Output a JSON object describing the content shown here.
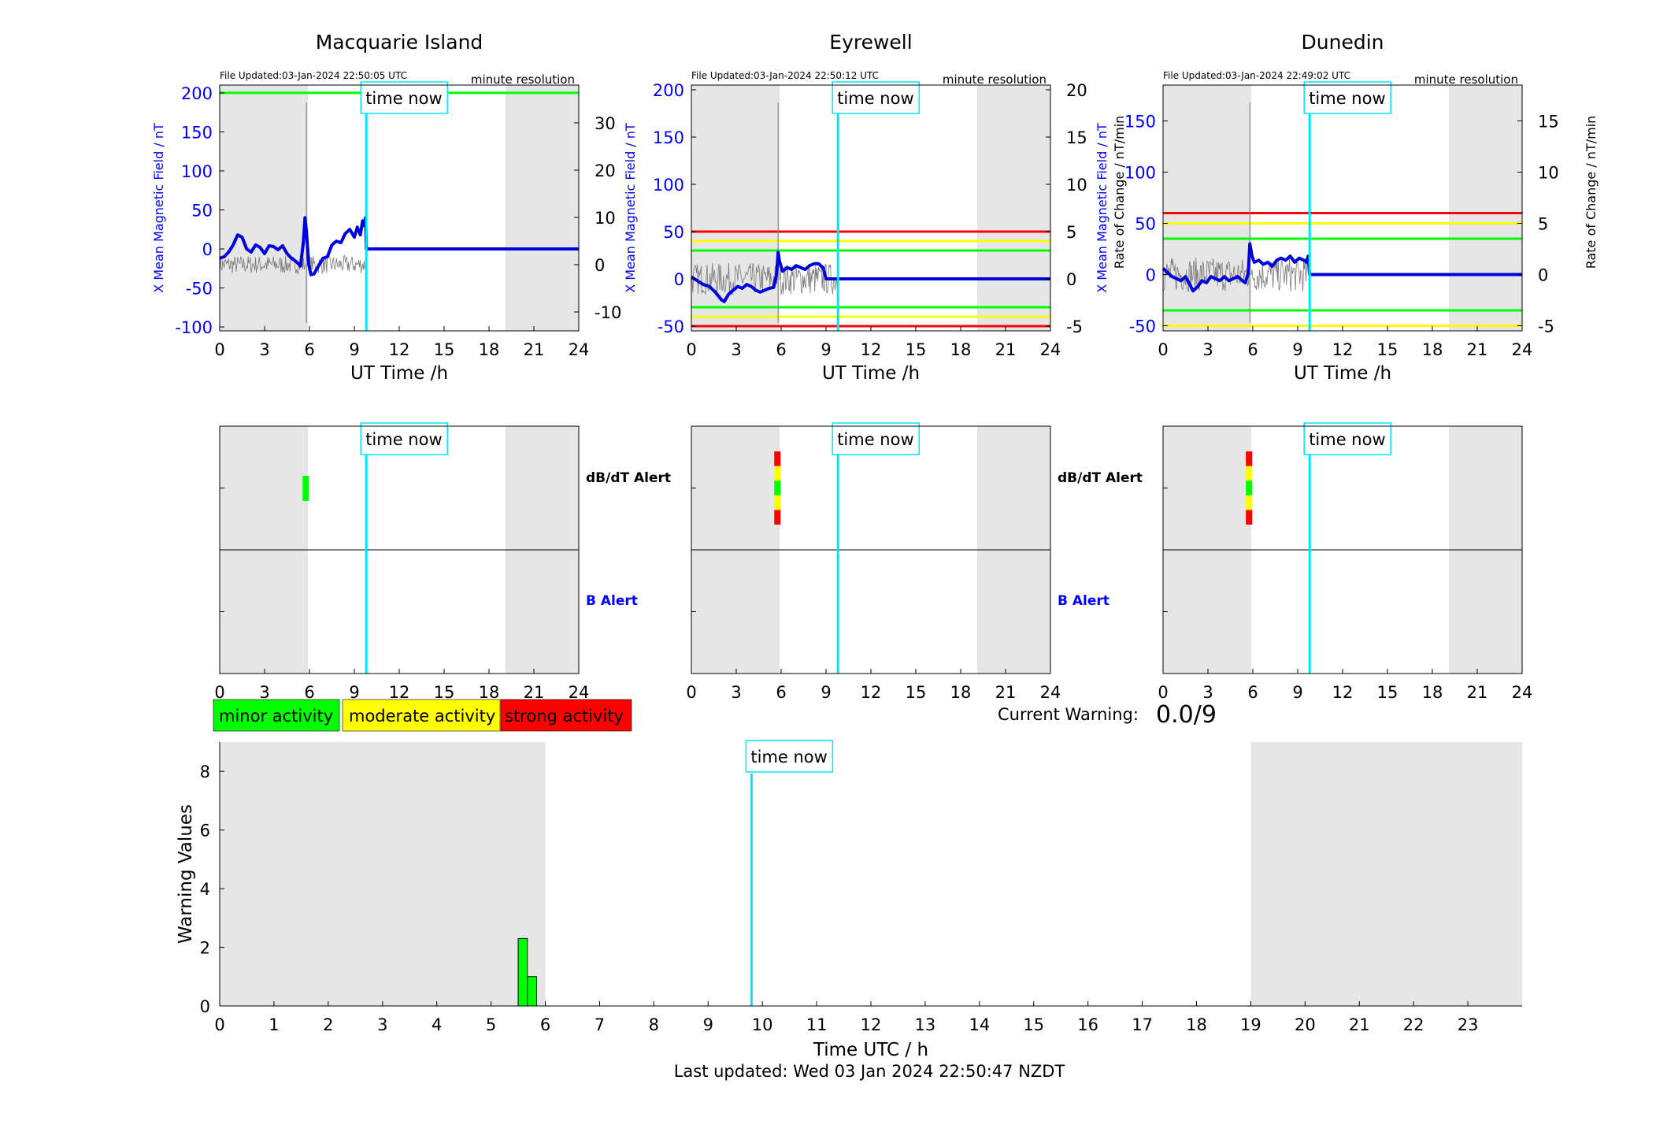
{
  "colors": {
    "background": "#ffffff",
    "night_shading": "#e6e6e6",
    "time_now": "#00e5ff",
    "field_trace": "#0000dd",
    "rate_trace": "#555555",
    "minor": "#00ff00",
    "moderate": "#ffff00",
    "strong": "#ff0000",
    "axis": "#000000",
    "blue_text": "#0000ff"
  },
  "stations": [
    {
      "title": "Macquarie Island",
      "file_updated": "File Updated:03-Jan-2024 22:50:05 UTC",
      "resolution": "minute resolution",
      "time_now_label": "time now",
      "left_axis_label": "X Mean Magnetic Field / nT",
      "right_axis_label": "",
      "xlabel": "UT Time /h",
      "dbdt_alert_label": "dB/dT Alert",
      "b_alert_label": "B Alert",
      "time_now_h": 9.8
    },
    {
      "title": "Eyrewell",
      "file_updated": "File Updated:03-Jan-2024 22:50:12 UTC",
      "resolution": "minute resolution",
      "time_now_label": "time now",
      "left_axis_label": "X Mean Magnetic Field / nT",
      "right_axis_label": "Rate of Change / nT/min",
      "xlabel": "UT Time /h",
      "dbdt_alert_label": "dB/dT Alert",
      "b_alert_label": "B Alert",
      "time_now_h": 9.8
    },
    {
      "title": "Dunedin",
      "file_updated": "File Updated:03-Jan-2024 22:49:02 UTC",
      "resolution": "minute resolution",
      "time_now_label": "time now",
      "left_axis_label": "X Mean Magnetic Field / nT",
      "right_axis_label": "Rate of Change / nT/min",
      "xlabel": "UT Time /h",
      "dbdt_alert_label": "",
      "b_alert_label": "",
      "time_now_h": 9.8
    }
  ],
  "legend": {
    "minor": "minor activity",
    "moderate": "moderate activity",
    "strong": "strong activity"
  },
  "current_warning": {
    "label": "Current Warning:",
    "value": "0.0/9"
  },
  "bottom": {
    "ylabel": "Warning Values",
    "xlabel": "Time UTC / h",
    "time_now_label": "time now",
    "last_updated": "Last updated: Wed 03 Jan 2024 22:50:47 NZDT"
  },
  "chart_data": [
    {
      "station": "Macquarie Island",
      "type": "line",
      "xlabel": "UT Time /h",
      "xlim": [
        0,
        24
      ],
      "xticks": [
        0,
        3,
        6,
        9,
        12,
        15,
        18,
        21,
        24
      ],
      "ylabel": "X Mean Magnetic Field / nT",
      "ylim": [
        -105,
        210
      ],
      "yticks": [
        -100,
        -50,
        0,
        50,
        100,
        150,
        200
      ],
      "y2lim": [
        -14,
        38
      ],
      "y2ticks": [
        -10,
        0,
        10,
        20,
        30
      ],
      "night_shading_h": [
        [
          0,
          5.9
        ],
        [
          19.1,
          24
        ]
      ],
      "thresholds": [
        {
          "y": 200,
          "level": "minor"
        }
      ],
      "time_now_h": 9.8,
      "series": [
        {
          "axis": "left",
          "x": [
            0,
            0.3,
            0.6,
            0.9,
            1.2,
            1.5,
            1.8,
            2.1,
            2.4,
            2.7,
            3.0,
            3.3,
            3.6,
            3.9,
            4.2,
            4.5,
            4.8,
            5.1,
            5.4,
            5.6,
            5.7,
            5.8,
            5.95,
            6.1,
            6.3,
            6.6,
            6.9,
            7.2,
            7.5,
            7.8,
            8.1,
            8.4,
            8.7,
            9.0,
            9.2,
            9.4,
            9.55,
            9.65,
            9.75,
            9.8,
            12,
            15,
            18,
            21,
            24
          ],
          "y": [
            -12,
            -10,
            -4,
            5,
            18,
            15,
            0,
            -4,
            5,
            2,
            -6,
            4,
            3,
            -1,
            4,
            -6,
            -12,
            -16,
            -22,
            10,
            40,
            22,
            -20,
            -33,
            -32,
            -22,
            -12,
            -10,
            5,
            10,
            8,
            20,
            25,
            15,
            28,
            18,
            36,
            30,
            40,
            0,
            0,
            0,
            0,
            0,
            0
          ]
        }
      ]
    },
    {
      "station": "Eyrewell",
      "type": "line",
      "xlabel": "UT Time /h",
      "xlim": [
        0,
        24
      ],
      "xticks": [
        0,
        3,
        6,
        9,
        12,
        15,
        18,
        21,
        24
      ],
      "ylabel": "X Mean Magnetic Field / nT",
      "ylim": [
        -55,
        205
      ],
      "yticks": [
        -50,
        0,
        50,
        100,
        150,
        200
      ],
      "y2label": "Rate of Change / nT/min",
      "y2lim": [
        -5.5,
        20.5
      ],
      "y2ticks": [
        -5,
        0,
        5,
        10,
        15,
        20
      ],
      "night_shading_h": [
        [
          0,
          5.9
        ],
        [
          19.1,
          24
        ]
      ],
      "thresholds": [
        {
          "y": 50,
          "level": "strong"
        },
        {
          "y": 40,
          "level": "moderate"
        },
        {
          "y": 30,
          "level": "minor"
        },
        {
          "y": -30,
          "level": "minor"
        },
        {
          "y": -40,
          "level": "moderate"
        },
        {
          "y": -50,
          "level": "strong"
        }
      ],
      "time_now_h": 9.8,
      "series": [
        {
          "axis": "left",
          "x": [
            0,
            0.4,
            0.8,
            1.2,
            1.6,
            2.0,
            2.2,
            2.5,
            2.8,
            3.1,
            3.4,
            3.7,
            4.0,
            4.3,
            4.6,
            4.9,
            5.2,
            5.5,
            5.7,
            5.8,
            5.9,
            6.1,
            6.4,
            6.7,
            7.0,
            7.3,
            7.6,
            7.9,
            8.2,
            8.5,
            8.8,
            9.0,
            12,
            15,
            18,
            21,
            24
          ],
          "y": [
            2,
            -2,
            -6,
            -8,
            -14,
            -22,
            -24,
            -16,
            -12,
            -8,
            -10,
            -6,
            -8,
            -12,
            -14,
            -12,
            -10,
            -9,
            5,
            28,
            18,
            8,
            12,
            10,
            14,
            12,
            10,
            14,
            16,
            16,
            12,
            0,
            0,
            0,
            0,
            0,
            0
          ]
        }
      ]
    },
    {
      "station": "Dunedin",
      "type": "line",
      "xlabel": "UT Time /h",
      "xlim": [
        0,
        24
      ],
      "xticks": [
        0,
        3,
        6,
        9,
        12,
        15,
        18,
        21,
        24
      ],
      "ylabel": "X Mean Magnetic Field / nT",
      "ylim": [
        -55,
        185
      ],
      "yticks": [
        -50,
        0,
        50,
        100,
        150
      ],
      "y2label": "Rate of Change / nT/min",
      "y2lim": [
        -5.5,
        18.5
      ],
      "y2ticks": [
        -5,
        0,
        5,
        10,
        15
      ],
      "night_shading_h": [
        [
          0,
          5.9
        ],
        [
          19.1,
          24
        ]
      ],
      "thresholds": [
        {
          "y": 60,
          "level": "strong"
        },
        {
          "y": 50,
          "level": "moderate"
        },
        {
          "y": 35,
          "level": "minor"
        },
        {
          "y": -35,
          "level": "minor"
        },
        {
          "y": -50,
          "level": "moderate"
        }
      ],
      "time_now_h": 9.8,
      "series": [
        {
          "axis": "left",
          "x": [
            0,
            0.3,
            0.6,
            0.9,
            1.2,
            1.5,
            1.8,
            2.0,
            2.3,
            2.6,
            2.9,
            3.2,
            3.5,
            3.8,
            4.1,
            4.4,
            4.7,
            5.0,
            5.3,
            5.5,
            5.7,
            5.8,
            5.95,
            6.1,
            6.4,
            6.7,
            7.0,
            7.3,
            7.6,
            7.9,
            8.2,
            8.5,
            8.8,
            9.1,
            9.4,
            9.6,
            9.7,
            9.8,
            12,
            15,
            18,
            21,
            24
          ],
          "y": [
            6,
            2,
            -2,
            -4,
            -6,
            -2,
            -10,
            -16,
            -12,
            -6,
            -8,
            -2,
            -4,
            -6,
            -2,
            -6,
            -4,
            -2,
            -6,
            -8,
            2,
            30,
            18,
            12,
            14,
            10,
            12,
            8,
            14,
            16,
            14,
            18,
            12,
            16,
            14,
            12,
            18,
            0,
            0,
            0,
            0,
            0,
            0
          ]
        }
      ]
    },
    {
      "title": "Warning Values",
      "type": "bar",
      "xlabel": "Time UTC / h",
      "xlim": [
        0,
        24
      ],
      "xticks": [
        0,
        1,
        2,
        3,
        4,
        5,
        6,
        7,
        8,
        9,
        10,
        11,
        12,
        13,
        14,
        15,
        16,
        17,
        18,
        19,
        20,
        21,
        22,
        23
      ],
      "ylabel": "Warning Values",
      "ylim": [
        0,
        9
      ],
      "yticks": [
        0,
        2,
        4,
        6,
        8
      ],
      "night_shading_h": [
        [
          0,
          6
        ],
        [
          19,
          24
        ]
      ],
      "time_now_h": 9.8,
      "bars": [
        {
          "x": 5.5,
          "width": 0.17,
          "value": 2.3,
          "level": "minor"
        },
        {
          "x": 5.67,
          "width": 0.17,
          "value": 1.0,
          "level": "minor"
        }
      ]
    },
    {
      "title": "dB/dT Alert",
      "type": "bar",
      "xlim": [
        0,
        24
      ],
      "alerts": [
        {
          "station": "Macquarie Island",
          "x": 5.75,
          "levels": [
            "minor"
          ]
        },
        {
          "station": "Eyrewell",
          "x": 5.75,
          "levels": [
            "strong",
            "moderate",
            "minor",
            "moderate",
            "strong"
          ]
        },
        {
          "station": "Dunedin",
          "x": 5.75,
          "levels": [
            "strong",
            "moderate",
            "minor",
            "moderate",
            "strong"
          ]
        }
      ]
    }
  ]
}
